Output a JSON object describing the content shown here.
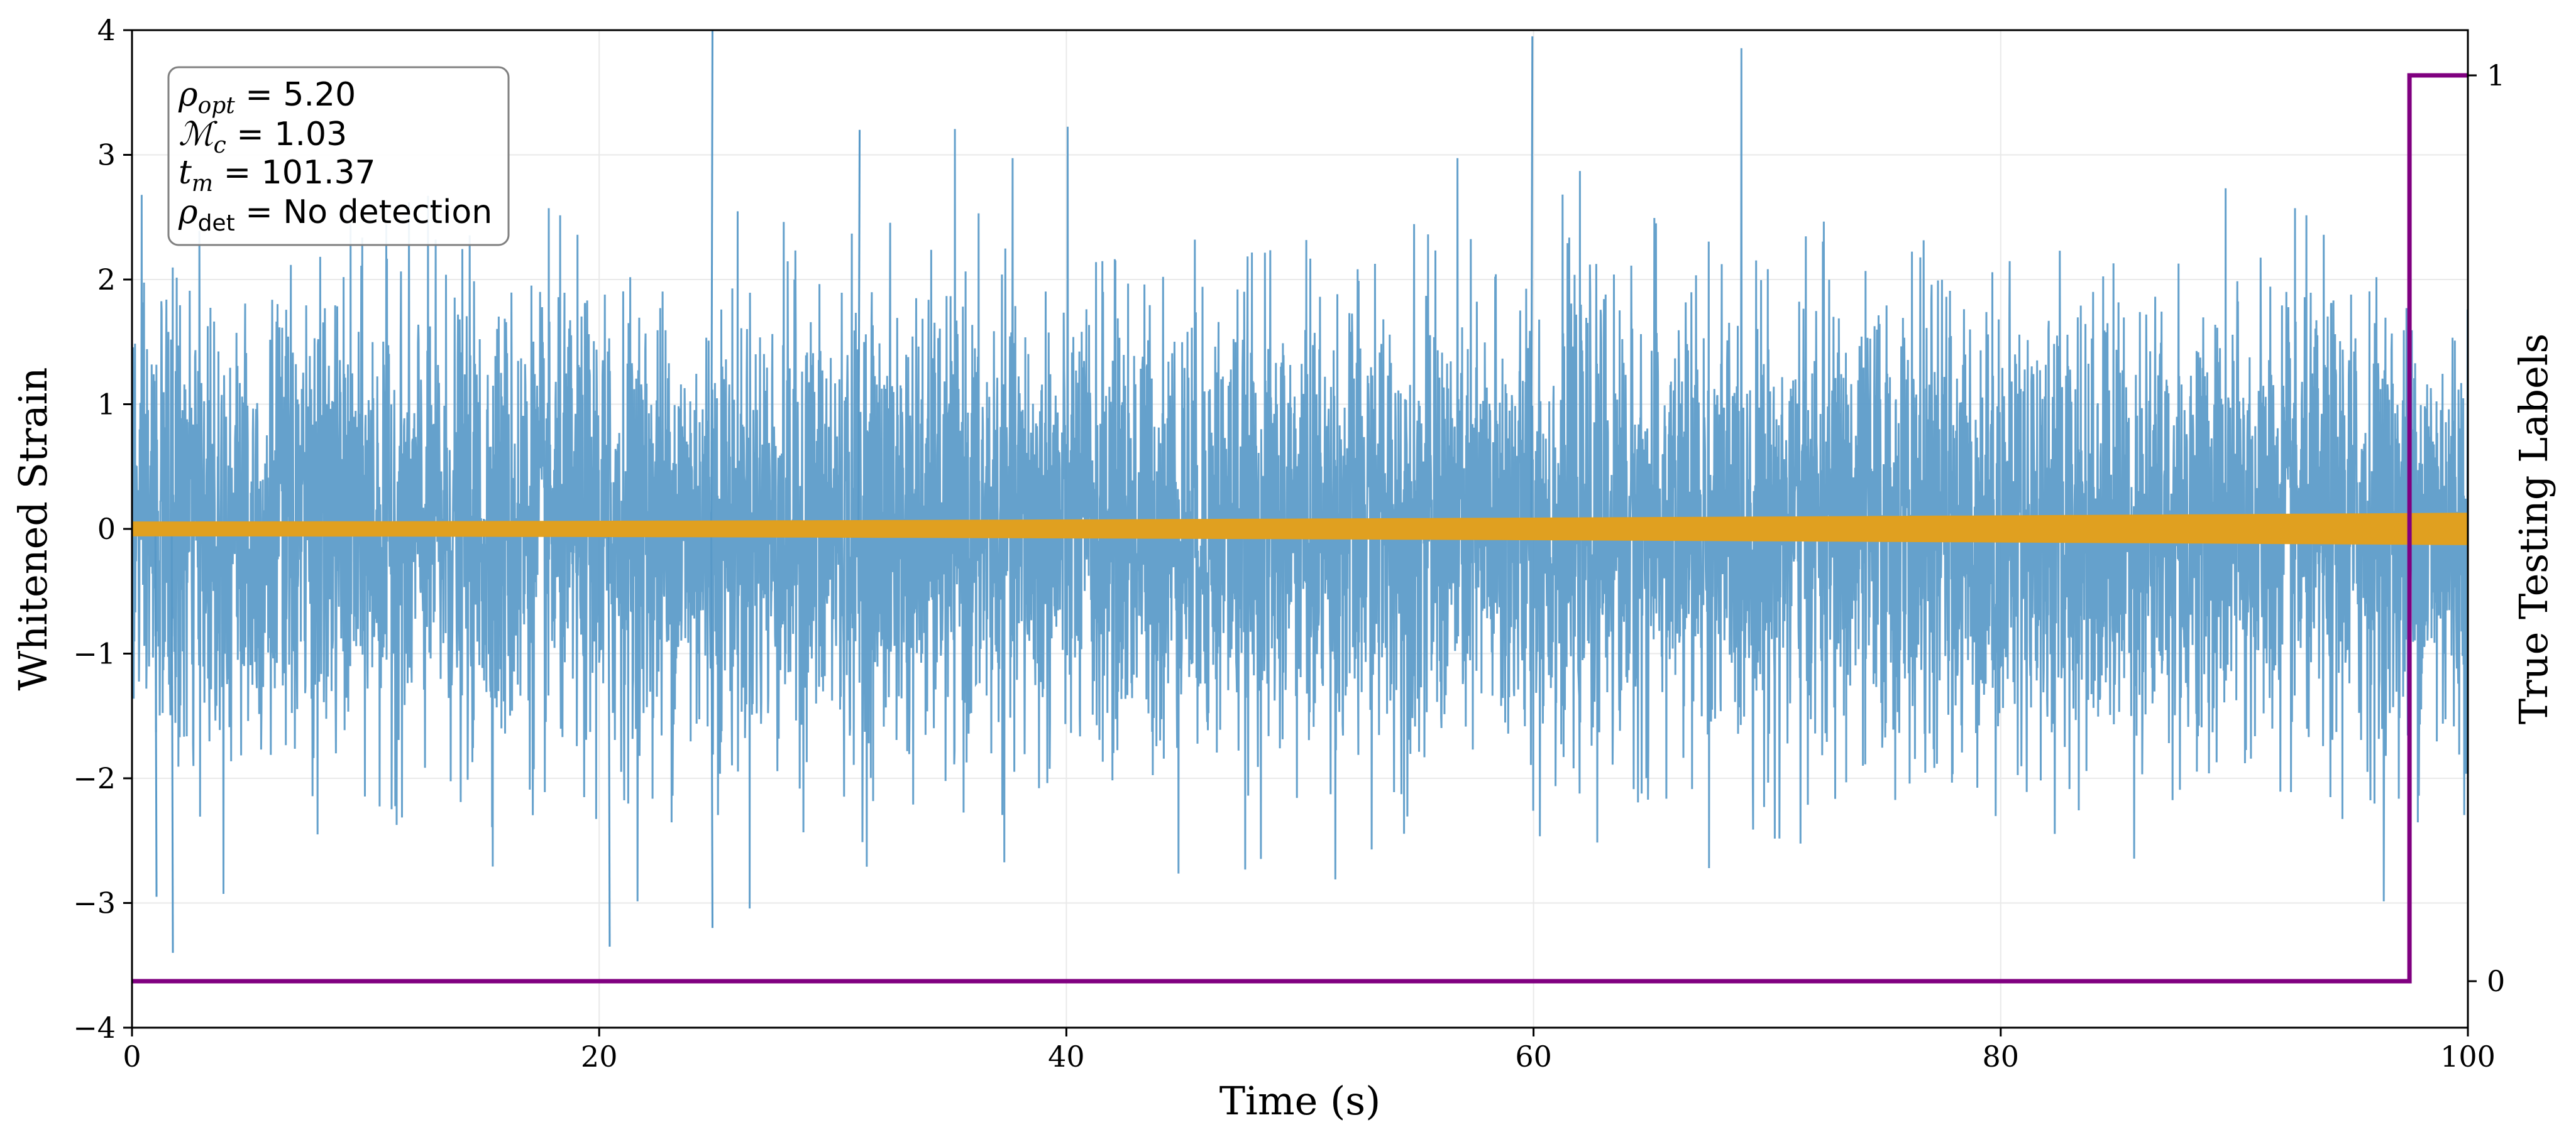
{
  "chart_data": {
    "type": "line",
    "x_axis": {
      "label": "Time (s)",
      "lim": [
        0,
        100
      ],
      "ticks": [
        0,
        20,
        40,
        60,
        80,
        100
      ],
      "tick_labels": [
        "0",
        "20",
        "40",
        "60",
        "80",
        "100"
      ]
    },
    "y_axis_left": {
      "label": "Whitened Strain",
      "lim": [
        -4,
        4
      ],
      "ticks": [
        -4,
        -3,
        -2,
        -1,
        0,
        1,
        2,
        3,
        4
      ],
      "tick_labels": [
        "−4",
        "−3",
        "−2",
        "−1",
        "0",
        "1",
        "2",
        "3",
        "4"
      ]
    },
    "y_axis_right": {
      "label": "True Testing Labels",
      "ticks": [
        0,
        1
      ],
      "tick_labels": [
        "0",
        "1"
      ]
    },
    "grid": true,
    "series": [
      {
        "kind": "noise",
        "color": "#5899c8",
        "approx_sigma": 0.9,
        "approx_extremes": {
          "max": 4.0,
          "min": -3.4
        }
      },
      {
        "kind": "signal",
        "color": "#e0a020",
        "amplitude_start": 0.06,
        "amplitude_end": 0.13
      },
      {
        "kind": "label",
        "color": "#800080",
        "steps": [
          {
            "x": 0,
            "y": 0
          },
          {
            "x": 97.5,
            "y": 1
          },
          {
            "x": 100,
            "y": 1
          }
        ]
      }
    ],
    "annotation": {
      "rho_opt": "5.20",
      "mc": "1.03",
      "tm": "101.37",
      "rho_det": "No detection"
    }
  }
}
